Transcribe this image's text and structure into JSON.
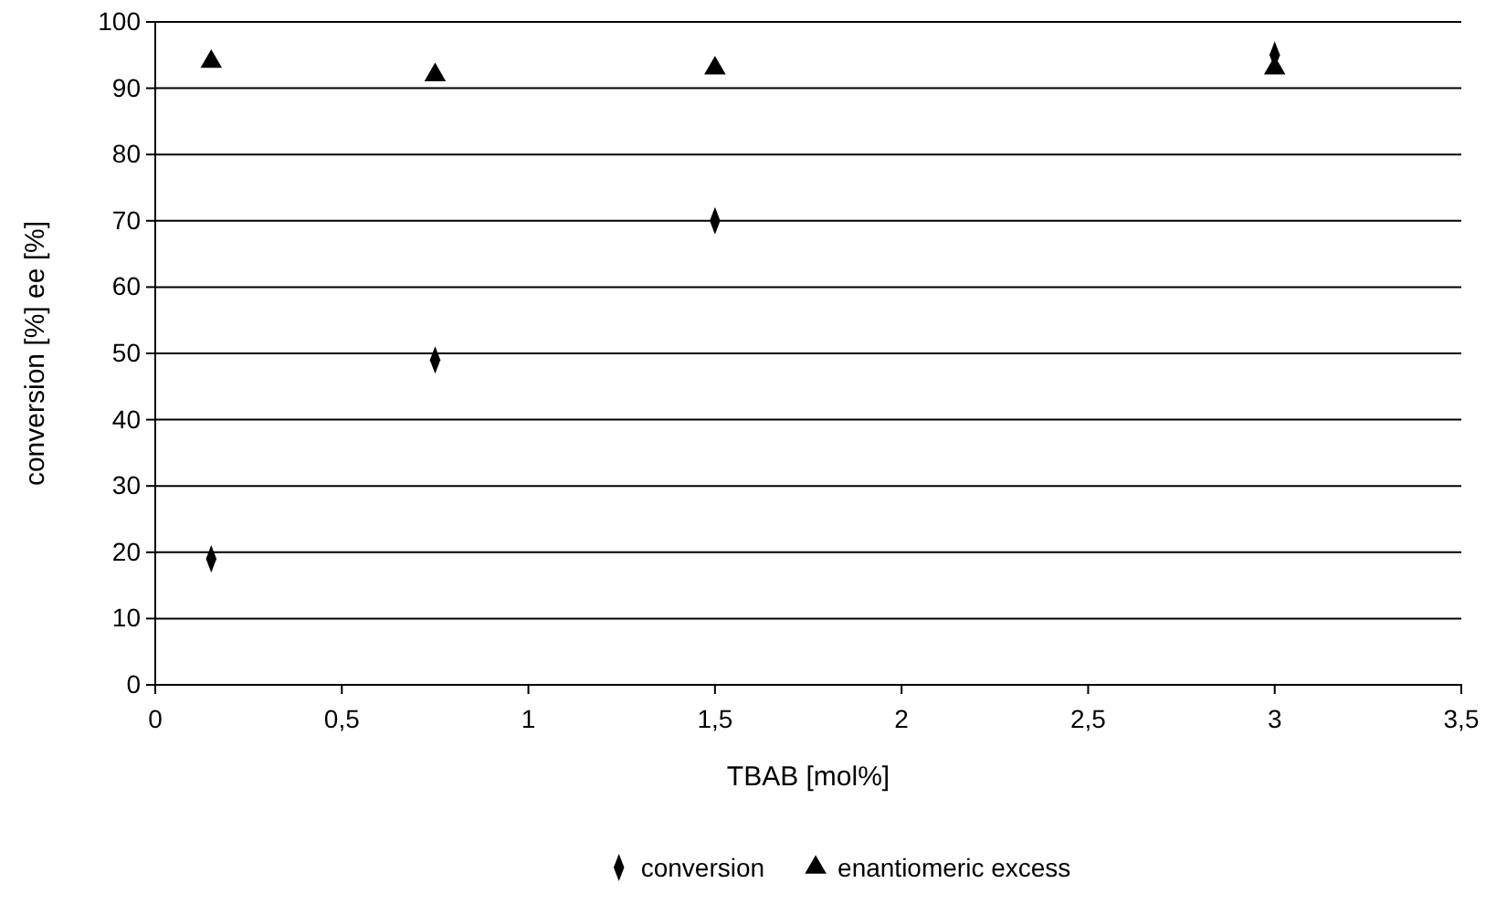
{
  "chart_data": {
    "type": "scatter",
    "xlabel": "TBAB [mol%]",
    "ylabel": "conversion [%] ee [%]",
    "xlim": [
      0,
      3.5
    ],
    "xticks": [
      0,
      {
        "value": 0.5,
        "label": "0,5"
      },
      1,
      {
        "value": 1.5,
        "label": "1,5"
      },
      2,
      {
        "value": 2.5,
        "label": "2,5"
      },
      3,
      {
        "value": 3.5,
        "label": "3,5"
      }
    ],
    "ylim": [
      0,
      100
    ],
    "yticks": [
      0,
      10,
      20,
      30,
      40,
      50,
      60,
      70,
      80,
      90,
      100
    ],
    "grid": "y",
    "legend": "bottom",
    "series": [
      {
        "name": "conversion",
        "color": "#000000",
        "marker": "diamond",
        "x": [
          0.15,
          0.75,
          1.5,
          3
        ],
        "values": [
          19,
          49,
          70,
          95
        ]
      },
      {
        "name": "enantiomeric excess",
        "color": "#000000",
        "marker": "triangle",
        "x": [
          0.15,
          0.75,
          1.5,
          3
        ],
        "values": [
          94,
          92,
          93,
          93
        ]
      }
    ]
  }
}
